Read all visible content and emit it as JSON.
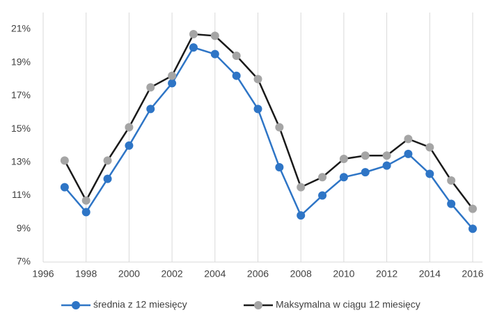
{
  "chart_data": {
    "type": "line",
    "x": [
      1997,
      1998,
      1999,
      2000,
      2001,
      2002,
      2003,
      2004,
      2005,
      2006,
      2007,
      2008,
      2009,
      2010,
      2011,
      2012,
      2013,
      2014,
      2015,
      2016
    ],
    "series": [
      {
        "name": "średnia z 12 miesięcy",
        "color": "#2e75c6",
        "marker_color": "#2e75c6",
        "values": [
          11.5,
          10.0,
          12.0,
          14.0,
          16.2,
          17.75,
          19.9,
          19.5,
          18.2,
          16.2,
          12.7,
          9.8,
          11.0,
          12.1,
          12.4,
          12.8,
          13.5,
          12.3,
          10.5,
          9.0
        ]
      },
      {
        "name": "Maksymalna w ciągu 12 miesięcy",
        "color": "#1a1a1a",
        "marker_color": "#a5a5a5",
        "values": [
          13.1,
          10.7,
          13.1,
          15.1,
          17.5,
          18.2,
          20.7,
          20.6,
          19.4,
          18.0,
          15.1,
          11.5,
          12.1,
          13.2,
          13.4,
          13.4,
          14.4,
          13.9,
          11.9,
          10.2
        ]
      }
    ],
    "xlim": [
      1996,
      2016
    ],
    "xticks": [
      1996,
      1998,
      2000,
      2002,
      2004,
      2006,
      2008,
      2010,
      2012,
      2014,
      2016
    ],
    "ylim": [
      7,
      22
    ],
    "yticks": [
      {
        "value": 7,
        "label": "7%"
      },
      {
        "value": 9,
        "label": "9%"
      },
      {
        "value": 11,
        "label": "11%"
      },
      {
        "value": 13,
        "label": "13%"
      },
      {
        "value": 15,
        "label": "15%"
      },
      {
        "value": 17,
        "label": "17%"
      },
      {
        "value": 19,
        "label": "19%"
      },
      {
        "value": 21,
        "label": "21%"
      }
    ],
    "grid": "x",
    "legend": "bottom"
  }
}
